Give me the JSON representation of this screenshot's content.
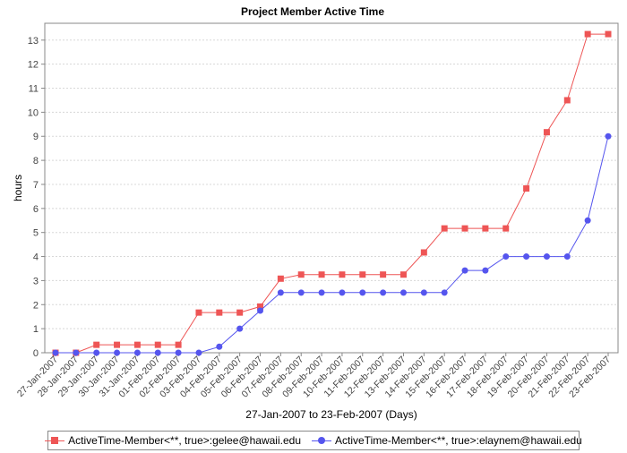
{
  "chart_data": {
    "type": "line",
    "title": "Project Member Active Time",
    "xlabel": "27-Jan-2007 to 23-Feb-2007 (Days)",
    "ylabel": "hours",
    "categories": [
      "27-Jan-2007",
      "28-Jan-2007",
      "29-Jan-2007",
      "30-Jan-2007",
      "31-Jan-2007",
      "01-Feb-2007",
      "02-Feb-2007",
      "03-Feb-2007",
      "04-Feb-2007",
      "05-Feb-2007",
      "06-Feb-2007",
      "07-Feb-2007",
      "08-Feb-2007",
      "09-Feb-2007",
      "10-Feb-2007",
      "11-Feb-2007",
      "12-Feb-2007",
      "13-Feb-2007",
      "14-Feb-2007",
      "15-Feb-2007",
      "16-Feb-2007",
      "17-Feb-2007",
      "18-Feb-2007",
      "19-Feb-2007",
      "20-Feb-2007",
      "21-Feb-2007",
      "22-Feb-2007",
      "23-Feb-2007"
    ],
    "ylim": [
      0,
      13.7
    ],
    "yticks": [
      0,
      1,
      2,
      3,
      4,
      5,
      6,
      7,
      8,
      9,
      10,
      11,
      12,
      13
    ],
    "grid": true,
    "legend_position": "bottom",
    "series": [
      {
        "name": "ActiveTime-Member<**, true>:gelee@hawaii.edu",
        "color": "#ee5555",
        "marker": "square",
        "values": [
          0,
          0,
          0.33,
          0.33,
          0.33,
          0.33,
          0.33,
          1.67,
          1.67,
          1.67,
          1.92,
          3.08,
          3.25,
          3.25,
          3.25,
          3.25,
          3.25,
          3.25,
          4.17,
          5.17,
          5.17,
          5.17,
          5.17,
          6.83,
          9.17,
          10.5,
          13.25,
          13.25
        ]
      },
      {
        "name": "ActiveTime-Member<**, true>:elaynem@hawaii.edu",
        "color": "#5555ee",
        "marker": "circle",
        "values": [
          0,
          0,
          0,
          0,
          0,
          0,
          0,
          0,
          0.25,
          1.0,
          1.75,
          2.5,
          2.5,
          2.5,
          2.5,
          2.5,
          2.5,
          2.5,
          2.5,
          2.5,
          3.42,
          3.42,
          4.0,
          4.0,
          4.0,
          4.0,
          5.5,
          9.0
        ]
      }
    ]
  }
}
